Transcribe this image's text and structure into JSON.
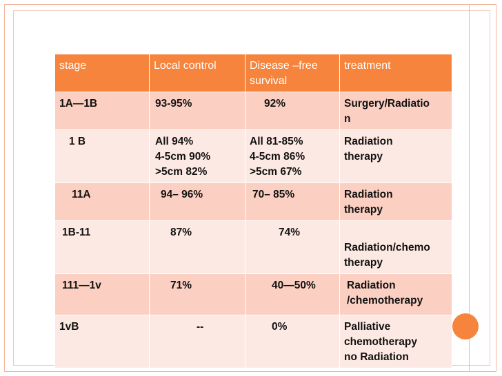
{
  "table": {
    "headers": [
      "stage",
      "Local control",
      "Disease –free survival",
      "treatment"
    ],
    "rows": [
      [
        "1A—1B",
        "93-95%",
        "92%",
        "Surgery/Radiatio\nn"
      ],
      [
        "1 B",
        "All 94%\n4-5cm 90%\n>5cm 82%",
        "All 81-85%\n4-5cm 86%\n>5cm 67%",
        "Radiation\ntherapy"
      ],
      [
        "11A",
        "94– 96%",
        "70– 85%",
        "Radiation\ntherapy"
      ],
      [
        "1B-11",
        "87%",
        "74%",
        "\nRadiation/chemo\ntherapy"
      ],
      [
        "111—1v",
        "71%",
        "40—50%",
        "Radiation\n/chemotherapy"
      ],
      [
        "1vB",
        "--",
        "0%",
        "Palliative\nchemotherapy\nno Radiation"
      ]
    ]
  },
  "colors": {
    "header_bg": "#f6843d",
    "row_dark": "#fbd0c2",
    "row_light": "#fde9e3",
    "frame": "#f3b59a"
  }
}
